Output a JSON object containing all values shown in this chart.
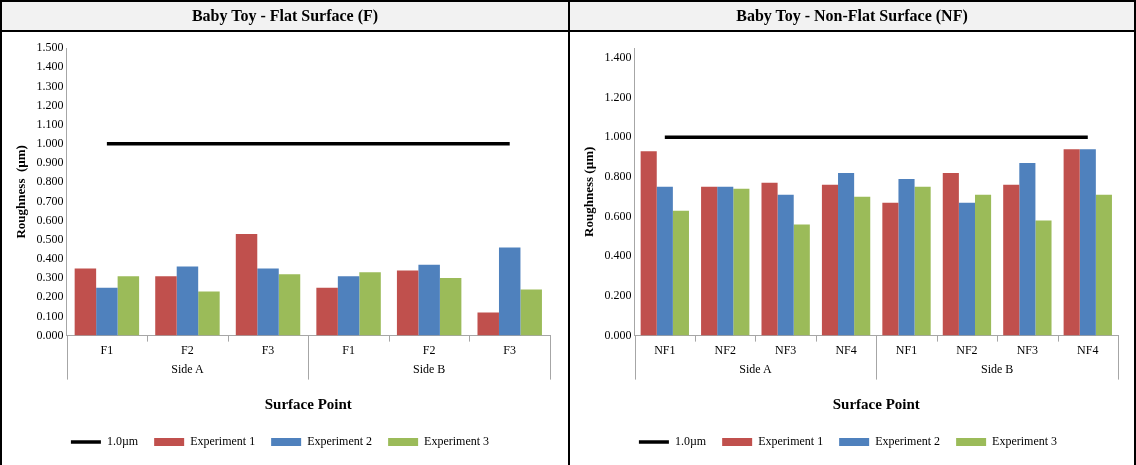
{
  "chart_data": [
    {
      "type": "bar",
      "title": "Baby Toy - Flat Surface (F)",
      "xlabel": "Surface Point",
      "ylabel": "Roughness  (µm)",
      "categories": [
        "F1",
        "F2",
        "F3",
        "F1",
        "F2",
        "F3"
      ],
      "annotations": [
        "Side A",
        "Side B"
      ],
      "legend": "bottom",
      "marker": "none",
      "ylim": [
        0,
        1.5
      ],
      "yticks": [
        {
          "value": 0,
          "label": "0.000"
        },
        {
          "value": 0.1,
          "label": "0.100"
        },
        {
          "value": 0.2,
          "label": "0.200"
        },
        {
          "value": 0.3,
          "label": "0.300"
        },
        {
          "value": 0.4,
          "label": "0.400"
        },
        {
          "value": 0.5,
          "label": "0.500"
        },
        {
          "value": 0.6,
          "label": "0.600"
        },
        {
          "value": 0.7,
          "label": "0.700"
        },
        {
          "value": 0.8,
          "label": "0.800"
        },
        {
          "value": 0.9,
          "label": "0.900"
        },
        {
          "value": 1,
          "label": "1.000"
        },
        {
          "value": 1.1,
          "label": "1.100"
        },
        {
          "value": 1.2,
          "label": "1.200"
        },
        {
          "value": 1.3,
          "label": "1.300"
        },
        {
          "value": 1.4,
          "label": "1.400"
        },
        {
          "value": 1.5,
          "label": "1.500"
        }
      ],
      "series": [
        {
          "name": "Experiment 1",
          "color": "#c0504d",
          "values": [
            0.35,
            0.31,
            0.53,
            0.25,
            0.34,
            0.12
          ]
        },
        {
          "name": "Experiment 2",
          "color": "#4f81bd",
          "values": [
            0.25,
            0.36,
            0.35,
            0.31,
            0.37,
            0.46
          ]
        },
        {
          "name": "Experiment 3",
          "color": "#9bbb59",
          "values": [
            0.31,
            0.23,
            0.32,
            0.33,
            0.3,
            0.24
          ]
        },
        {
          "name": "1.0µm",
          "type": "line",
          "color": "#000000",
          "values": [
            1,
            1,
            1,
            1,
            1,
            1
          ]
        }
      ]
    },
    {
      "type": "bar",
      "title": "Baby Toy - Non-Flat Surface (NF)",
      "xlabel": "Surface Point",
      "ylabel": "Roughness (µm)",
      "categories": [
        "NF1",
        "NF2",
        "NF3",
        "NF4",
        "NF1",
        "NF2",
        "NF3",
        "NF4"
      ],
      "annotations": [
        "Side A",
        "Side B"
      ],
      "legend": "bottom",
      "marker": "none",
      "ylim": [
        0,
        1.45
      ],
      "yticks": [
        {
          "value": 0,
          "label": "0.000"
        },
        {
          "value": 0.2,
          "label": "0.200"
        },
        {
          "value": 0.4,
          "label": "0.400"
        },
        {
          "value": 0.6,
          "label": "0.600"
        },
        {
          "value": 0.8,
          "label": "0.800"
        },
        {
          "value": 1,
          "label": "1.000"
        },
        {
          "value": 1.2,
          "label": "1.200"
        },
        {
          "value": 1.4,
          "label": "1.400"
        }
      ],
      "series": [
        {
          "name": "Experiment 1",
          "color": "#c0504d",
          "values": [
            0.93,
            0.75,
            0.77,
            0.76,
            0.67,
            0.82,
            0.76,
            0.94
          ]
        },
        {
          "name": "Experiment 2",
          "color": "#4f81bd",
          "values": [
            0.75,
            0.75,
            0.71,
            0.82,
            0.79,
            0.67,
            0.87,
            0.94
          ]
        },
        {
          "name": "Experiment 3",
          "color": "#9bbb59",
          "values": [
            0.63,
            0.74,
            0.56,
            0.7,
            0.75,
            0.71,
            0.58,
            0.71
          ]
        },
        {
          "name": "1.0µm",
          "type": "line",
          "color": "#000000",
          "values": [
            1,
            1,
            1,
            1,
            1,
            1,
            1,
            1
          ]
        }
      ]
    }
  ]
}
